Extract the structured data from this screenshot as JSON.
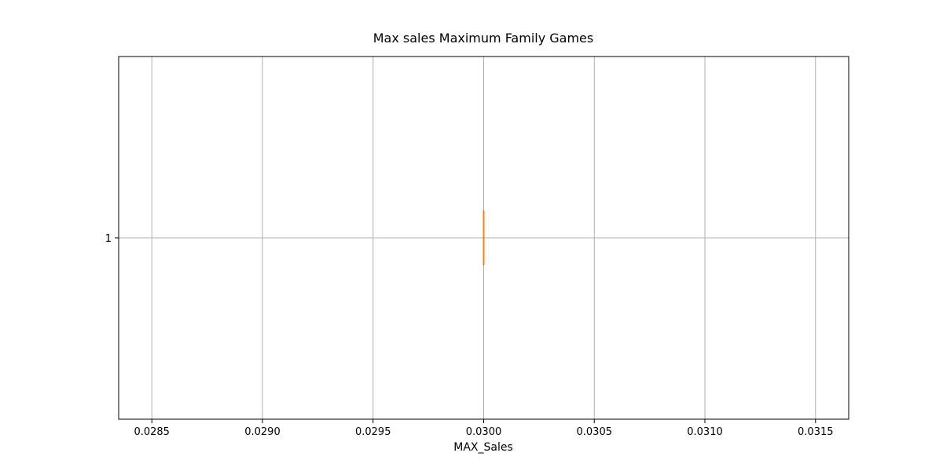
{
  "chart_data": {
    "type": "boxplot",
    "orientation": "horizontal",
    "title": "Max sales Maximum Family Games",
    "xlabel": "MAX_Sales",
    "ylabel": "",
    "xlim": [
      0.02835,
      0.03165
    ],
    "xticks": [
      0.0285,
      0.029,
      0.0295,
      0.03,
      0.0305,
      0.031,
      0.0315
    ],
    "xtick_labels": [
      "0.0285",
      "0.0290",
      "0.0295",
      "0.0300",
      "0.0305",
      "0.0310",
      "0.0315"
    ],
    "categories": [
      "1"
    ],
    "series": [
      {
        "min": 0.03,
        "q1": 0.03,
        "median": 0.03,
        "q3": 0.03,
        "max": 0.03
      }
    ],
    "grid": true,
    "colors": {
      "box": "#000000",
      "median": "#ff7f0e",
      "grid": "#b0b0b0"
    }
  }
}
